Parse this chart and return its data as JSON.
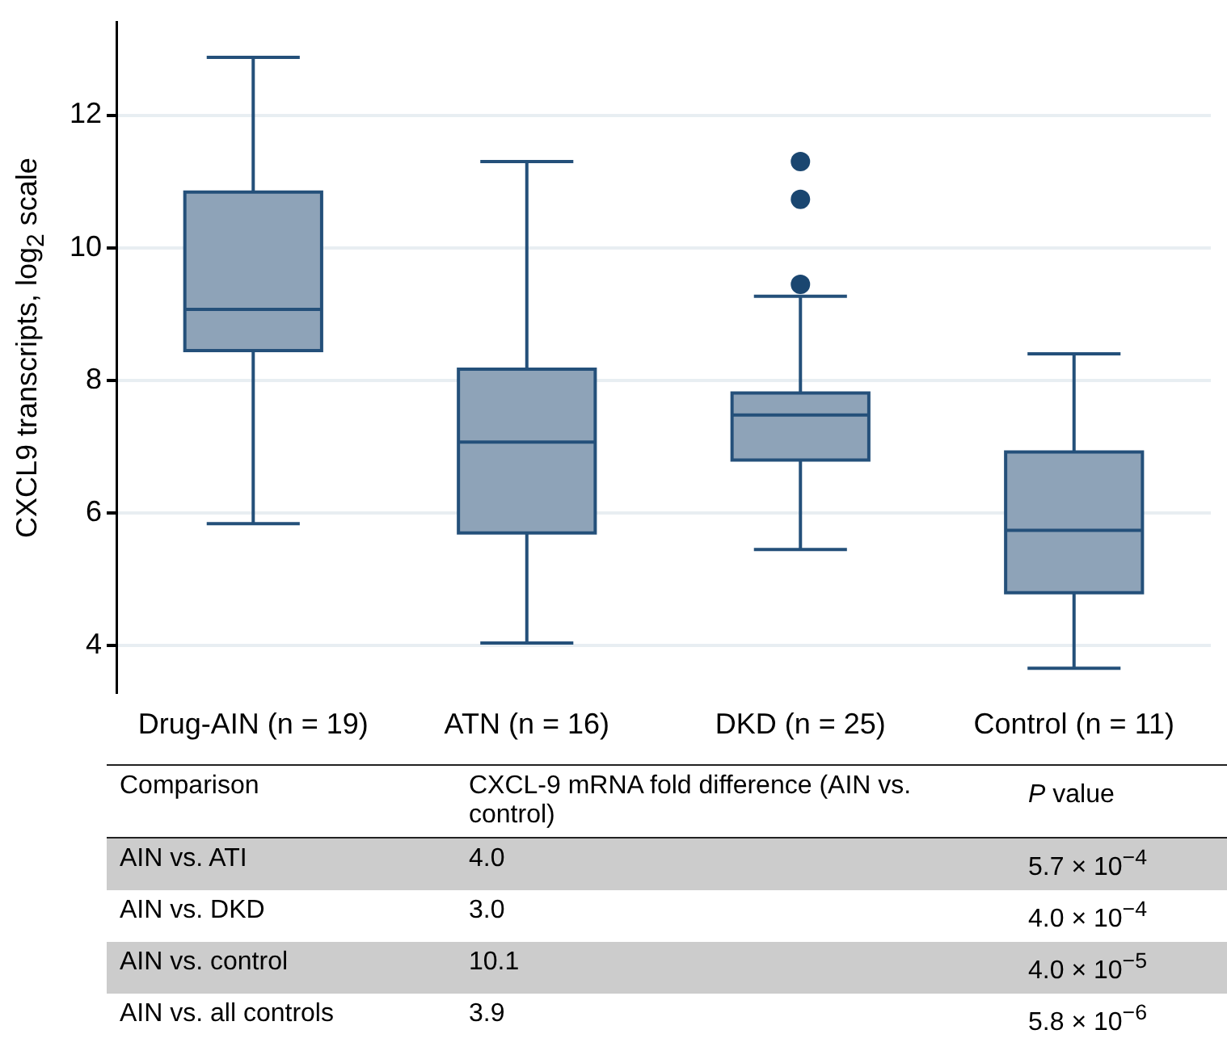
{
  "chart_data": {
    "type": "box",
    "ylabel": "CXCL9 transcripts, log$_{2}$ scale",
    "categories": [
      "Drug-AIN (n = 19)",
      "ATN (n = 16)",
      "DKD (n = 25)",
      "Control (n = 11)"
    ],
    "color": "#8ea3b8",
    "boxes": [
      {
        "low": 5.84,
        "q1": 8.45,
        "median": 9.07,
        "q3": 10.84,
        "high": 12.87
      },
      {
        "low": 4.04,
        "q1": 5.7,
        "median": 7.07,
        "q3": 8.17,
        "high": 11.3
      },
      {
        "low": 5.45,
        "q1": 6.8,
        "median": 7.48,
        "q3": 7.81,
        "high": 9.27,
        "outliers": [
          9.45,
          10.73,
          11.3
        ]
      },
      {
        "low": 3.66,
        "q1": 4.8,
        "median": 5.74,
        "q3": 6.92,
        "high": 8.4
      }
    ],
    "ylim": [
      3.3,
      13.4
    ],
    "yticks": [
      4,
      6,
      8,
      10,
      12
    ],
    "grid": "y",
    "annotations": [
      "Comparison",
      "CXCL-9 mRNA fold difference (AIN vs. control)",
      "$^{}$P value",
      "AIN vs. ATI",
      "4.0",
      "5.7 × 10$^{−4}$",
      "AIN vs. DKD",
      "3.0",
      "4.0 × 10$^{−4}$",
      "AIN vs. control",
      "10.1",
      "4.0 × 10$^{−5}$",
      "AIN vs. all controls",
      "3.9",
      "5.8 × 10$^{−6}$"
    ]
  }
}
